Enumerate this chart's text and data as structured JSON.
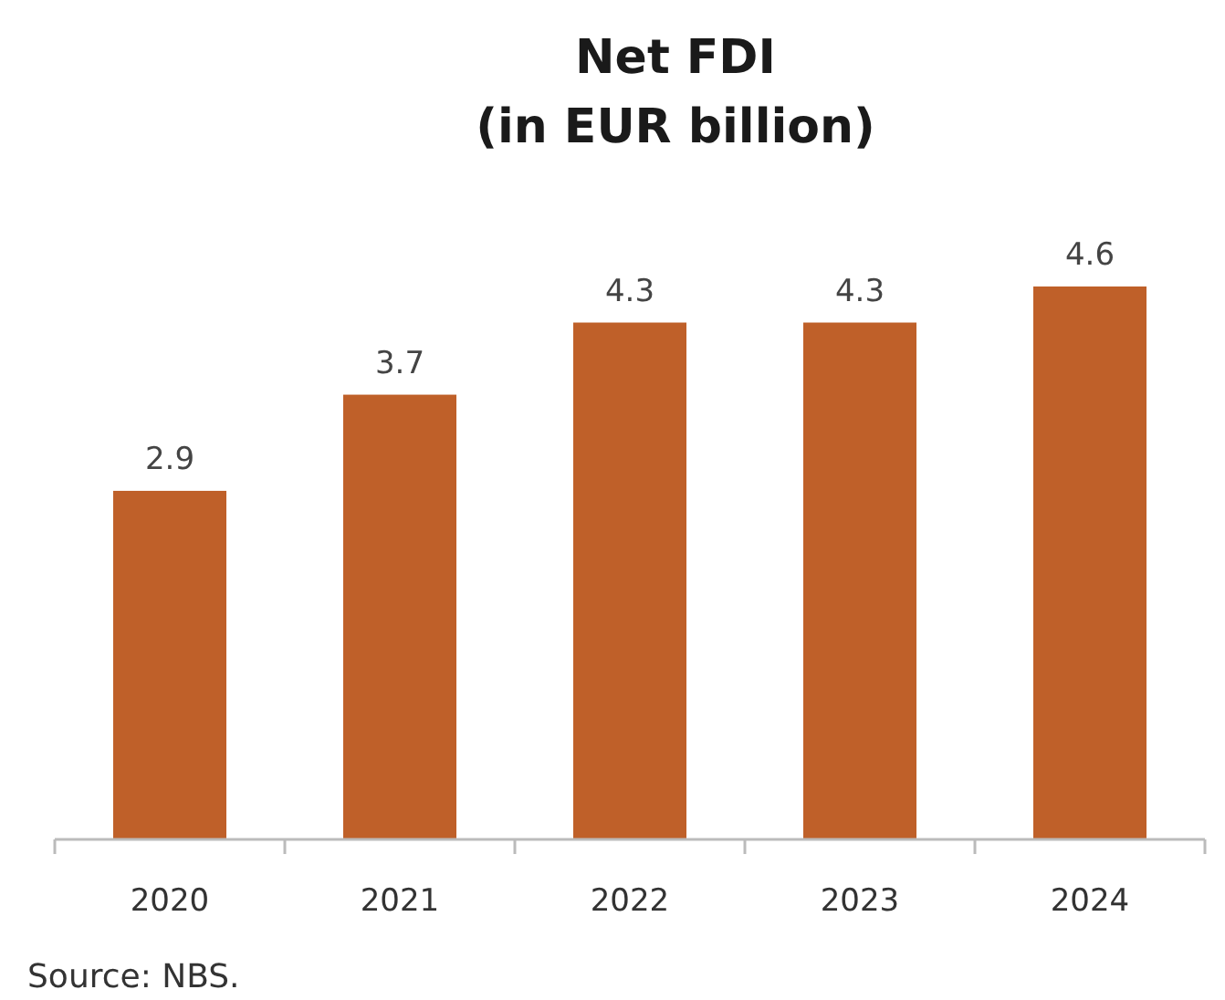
{
  "chart_data": {
    "type": "bar",
    "title": "Net FDI",
    "subtitle": "(in EUR billion)",
    "categories": [
      "2020",
      "2021",
      "2022",
      "2023",
      "2024"
    ],
    "values": [
      2.9,
      3.7,
      4.3,
      4.3,
      4.6
    ],
    "color": "#bf6029",
    "data_labels": true,
    "annotations": [
      "Source: NBS."
    ]
  }
}
